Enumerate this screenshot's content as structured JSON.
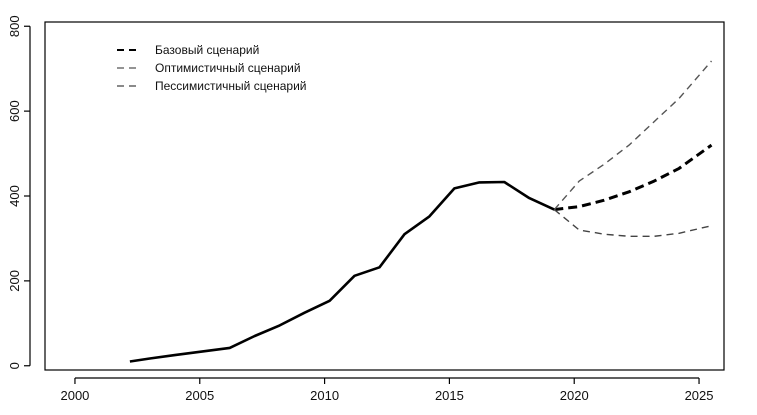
{
  "chart_data": {
    "type": "line",
    "title": "",
    "xlabel": "",
    "ylabel": "",
    "xlim": [
      1998.8,
      2026.0
    ],
    "ylim": [
      -10,
      810
    ],
    "xticks": [
      2000,
      2005,
      2010,
      2015,
      2020,
      2025
    ],
    "yticks": [
      0,
      200,
      400,
      600,
      800
    ],
    "grid": false,
    "legend_position": "top-left",
    "legend": [
      "Базовый сценарий",
      "Оптимистичный сценарий",
      "Пессимистичный сценарий"
    ],
    "series": [
      {
        "type": "historical",
        "color": "#000000",
        "x": [
          2002.2,
          2003.0,
          2004.0,
          2005.0,
          2006.2,
          2007.2,
          2008.2,
          2009.2,
          2010.2,
          2011.2,
          2012.2,
          2013.2,
          2014.2,
          2015.2,
          2016.2,
          2017.2,
          2018.2,
          2019.2
        ],
        "values": [
          10,
          17,
          25,
          33,
          42,
          70,
          95,
          125,
          153,
          212,
          232,
          310,
          352,
          418,
          432,
          433,
          395,
          368
        ]
      },
      {
        "name": "Базовый сценарий",
        "color": "#000000",
        "x": [
          2019.2,
          2020.2,
          2021.2,
          2022.2,
          2023.2,
          2024.2,
          2025.5
        ],
        "values": [
          368,
          375,
          390,
          410,
          435,
          465,
          520
        ]
      },
      {
        "name": "Оптимистичный сценарий",
        "color": "#555555",
        "x": [
          2019.2,
          2020.2,
          2021.2,
          2022.2,
          2023.2,
          2024.2,
          2025.5
        ],
        "values": [
          368,
          435,
          475,
          520,
          575,
          630,
          718
        ]
      },
      {
        "name": "Пессимистичный сценарий",
        "color": "#444444",
        "x": [
          2019.2,
          2020.2,
          2021.2,
          2022.2,
          2023.2,
          2024.2,
          2025.5
        ],
        "values": [
          368,
          320,
          310,
          305,
          305,
          312,
          330
        ]
      }
    ]
  }
}
